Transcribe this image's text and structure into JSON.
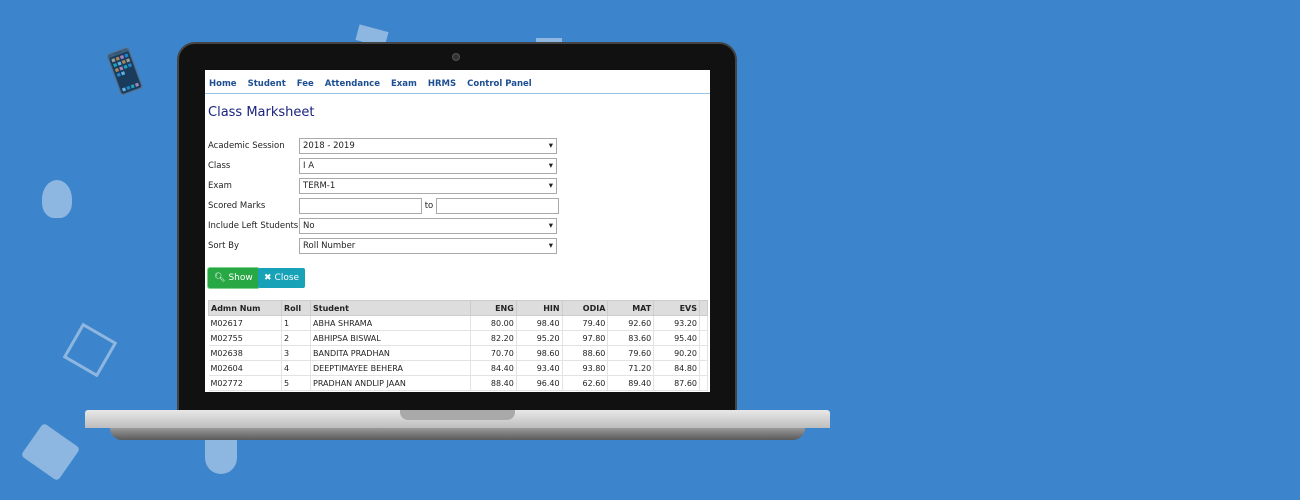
{
  "nav": [
    "Home",
    "Student",
    "Fee",
    "Attendance",
    "Exam",
    "HRMS",
    "Control Panel"
  ],
  "title": "Class Marksheet",
  "form": {
    "session_label": "Academic Session",
    "session": "2018 - 2019",
    "class_label": "Class",
    "class": "I A",
    "exam_label": "Exam",
    "exam": "TERM-1",
    "scored_label": "Scored Marks",
    "to": "to",
    "from_value": "",
    "to_value": "",
    "left_label": "Include Left Students",
    "left": "No",
    "sort_label": "Sort By",
    "sort": "Roll Number"
  },
  "buttons": {
    "show": "Show",
    "close": "Close",
    "show_color": "#28a745",
    "close_color": "#17a2b8"
  },
  "table": {
    "headers": [
      "Admn Num",
      "Roll",
      "Student",
      "ENG",
      "HIN",
      "ODIA",
      "MAT",
      "EVS"
    ],
    "rows": [
      [
        "M02617",
        "1",
        "ABHA SHRAMA",
        "80.00",
        "98.40",
        "79.40",
        "92.60",
        "93.20"
      ],
      [
        "M02755",
        "2",
        "ABHIPSA BISWAL",
        "82.20",
        "95.20",
        "97.80",
        "83.60",
        "95.40"
      ],
      [
        "M02638",
        "3",
        "BANDITA PRADHAN",
        "70.70",
        "98.60",
        "88.60",
        "79.60",
        "90.20"
      ],
      [
        "M02604",
        "4",
        "DEEPTIMAYEE BEHERA",
        "84.40",
        "93.40",
        "93.80",
        "71.20",
        "84.80"
      ],
      [
        "M02772",
        "5",
        "PRADHAN ANDLIP JAAN",
        "88.40",
        "96.40",
        "62.60",
        "89.40",
        "87.60"
      ]
    ]
  },
  "background_color": "#3c84cb"
}
